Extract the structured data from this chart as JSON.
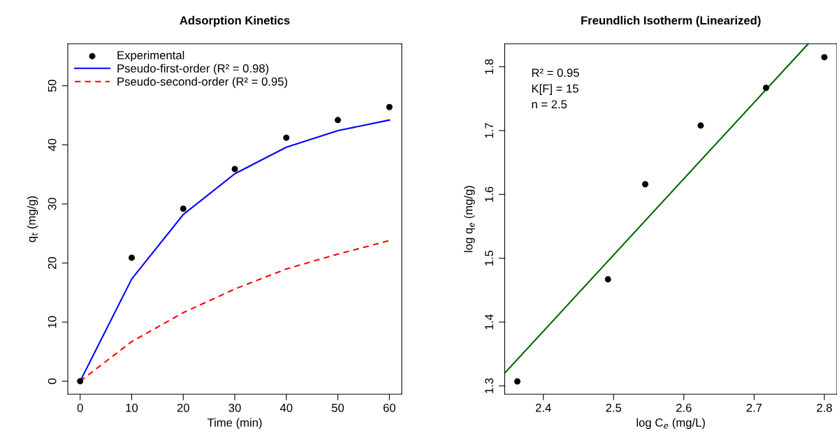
{
  "chart_data": [
    {
      "type": "scatter",
      "title": "Adsorption Kinetics",
      "xlabel": "Time (min)",
      "ylabel": "q$_{t}$ (mg/g)",
      "x": [
        0,
        10,
        20,
        30,
        40,
        50,
        60
      ],
      "series": [
        {
          "name": "Experimental",
          "color": "#000000",
          "marker": "circle",
          "values": [
            0,
            20.9,
            29.2,
            35.9,
            41.2,
            44.2,
            46.4
          ]
        },
        {
          "name": "Pseudo-first-order (R² = 0.98)",
          "type": "line",
          "color": "#0000ff",
          "line_style": "solid",
          "values": [
            0,
            17.3,
            28.2,
            35.1,
            39.6,
            42.4,
            44.2
          ]
        },
        {
          "name": "Pseudo-second-order (R² = 0.95)",
          "type": "line",
          "color": "#ff0000",
          "line_style": "dashed",
          "values": [
            0,
            6.7,
            11.6,
            15.6,
            19.0,
            21.5,
            23.8
          ]
        }
      ],
      "xlim": [
        -2.4,
        62.4
      ],
      "ylim": [
        -2.2,
        57.1
      ],
      "xticks": [
        0,
        10,
        20,
        30,
        40,
        50,
        60
      ],
      "yticks": [
        0,
        10,
        20,
        30,
        40,
        50
      ],
      "legend": "top left",
      "grid": false
    },
    {
      "type": "scatter",
      "title": "Freundlich Isotherm (Linearized)",
      "xlabel": "log C$_{e}$ (mg/L)",
      "ylabel": "log q$_{e}$ (mg/g)",
      "series": [
        {
          "color": "#000000",
          "marker": "circle",
          "x": [
            2.363,
            2.492,
            2.545,
            2.624,
            2.717,
            2.8
          ],
          "values": [
            1.307,
            1.467,
            1.616,
            1.708,
            1.767,
            1.815
          ]
        },
        {
          "type": "line",
          "color": "#006400",
          "line_style": "solid",
          "x": [
            2.345,
            2.777
          ],
          "values": [
            1.32,
            1.836
          ]
        }
      ],
      "xlim": [
        2.345,
        2.818
      ],
      "ylim": [
        1.287,
        1.836
      ],
      "xticks": [
        2.4,
        2.5,
        2.6,
        2.7,
        2.8
      ],
      "yticks": [
        1.3,
        1.4,
        1.5,
        1.6,
        1.7,
        1.8
      ],
      "annotations": [
        "R² = 0.95",
        "K[F] = 15",
        "n = 2.5"
      ],
      "grid": false
    }
  ]
}
